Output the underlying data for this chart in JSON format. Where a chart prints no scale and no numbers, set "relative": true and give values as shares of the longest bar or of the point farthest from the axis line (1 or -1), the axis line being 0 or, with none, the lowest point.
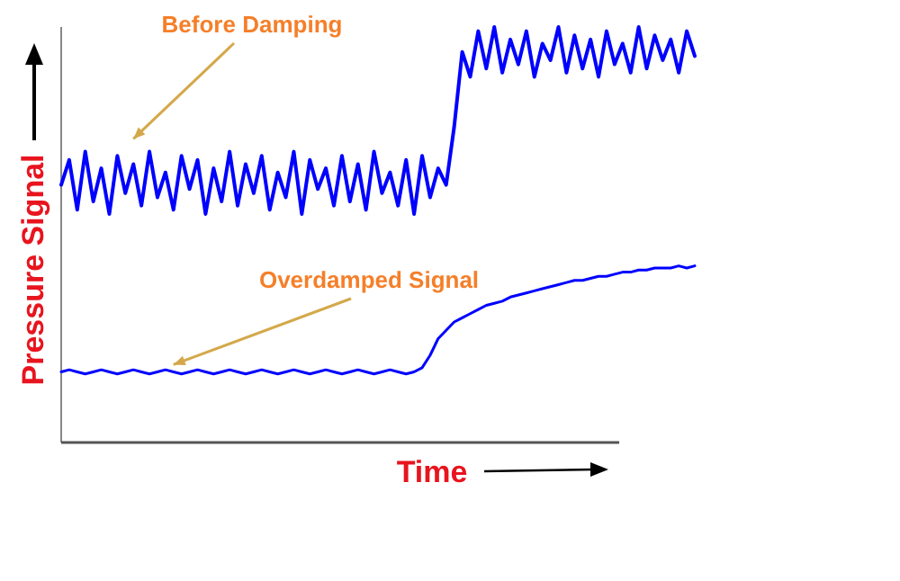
{
  "chart_data": {
    "type": "line",
    "relative": true,
    "xlabel": "Time",
    "ylabel": "Pressure Signal",
    "annotations": [
      "Before Damping",
      "Overdamped Signal"
    ],
    "categories": [
      null,
      null,
      null,
      null,
      null,
      null,
      null,
      null,
      null,
      null,
      null,
      null,
      null,
      null,
      null,
      null,
      null,
      null,
      null,
      null,
      null,
      null,
      null,
      null,
      null,
      null,
      null,
      null,
      null,
      null,
      null,
      null,
      null,
      null,
      null,
      null,
      null,
      null,
      null,
      null,
      null,
      null,
      null,
      null,
      null,
      null,
      null,
      null,
      null,
      null,
      null,
      null,
      null,
      null,
      null,
      null,
      null,
      null,
      null,
      null,
      null,
      null,
      null,
      null,
      null,
      null,
      null,
      null,
      null,
      null,
      null,
      null,
      null,
      null,
      null,
      null,
      null,
      null,
      null,
      null
    ],
    "series": [
      {
        "color": "#0000ff",
        "values": [
          0.62,
          0.68,
          0.56,
          0.7,
          0.58,
          0.66,
          0.55,
          0.69,
          0.6,
          0.67,
          0.57,
          0.7,
          0.59,
          0.65,
          0.56,
          0.69,
          0.61,
          0.68,
          0.55,
          0.66,
          0.58,
          0.7,
          0.57,
          0.67,
          0.6,
          0.69,
          0.56,
          0.65,
          0.59,
          0.7,
          0.55,
          0.68,
          0.61,
          0.66,
          0.57,
          0.69,
          0.58,
          0.67,
          0.56,
          0.7,
          0.6,
          0.65,
          0.57,
          0.68,
          0.55,
          0.69,
          0.59,
          0.66,
          0.62,
          0.76,
          0.94,
          0.88,
          0.99,
          0.9,
          1.0,
          0.89,
          0.97,
          0.91,
          0.99,
          0.88,
          0.96,
          0.92,
          1.0,
          0.89,
          0.98,
          0.9,
          0.97,
          0.88,
          0.99,
          0.91,
          0.96,
          0.89,
          1.0,
          0.9,
          0.98,
          0.92,
          0.97,
          0.89,
          0.99,
          0.93
        ]
      },
      {
        "color": "#0000ff",
        "values": [
          0.17,
          0.175,
          0.17,
          0.165,
          0.17,
          0.175,
          0.17,
          0.165,
          0.17,
          0.175,
          0.17,
          0.165,
          0.17,
          0.175,
          0.17,
          0.165,
          0.17,
          0.175,
          0.17,
          0.165,
          0.17,
          0.175,
          0.17,
          0.165,
          0.17,
          0.175,
          0.17,
          0.165,
          0.17,
          0.175,
          0.17,
          0.165,
          0.17,
          0.175,
          0.17,
          0.165,
          0.17,
          0.175,
          0.17,
          0.165,
          0.17,
          0.175,
          0.17,
          0.165,
          0.17,
          0.18,
          0.21,
          0.25,
          0.27,
          0.29,
          0.3,
          0.31,
          0.32,
          0.33,
          0.335,
          0.34,
          0.35,
          0.355,
          0.36,
          0.365,
          0.37,
          0.375,
          0.38,
          0.385,
          0.39,
          0.39,
          0.395,
          0.4,
          0.4,
          0.405,
          0.41,
          0.41,
          0.415,
          0.415,
          0.42,
          0.42,
          0.42,
          0.425,
          0.42,
          0.425
        ]
      }
    ]
  }
}
